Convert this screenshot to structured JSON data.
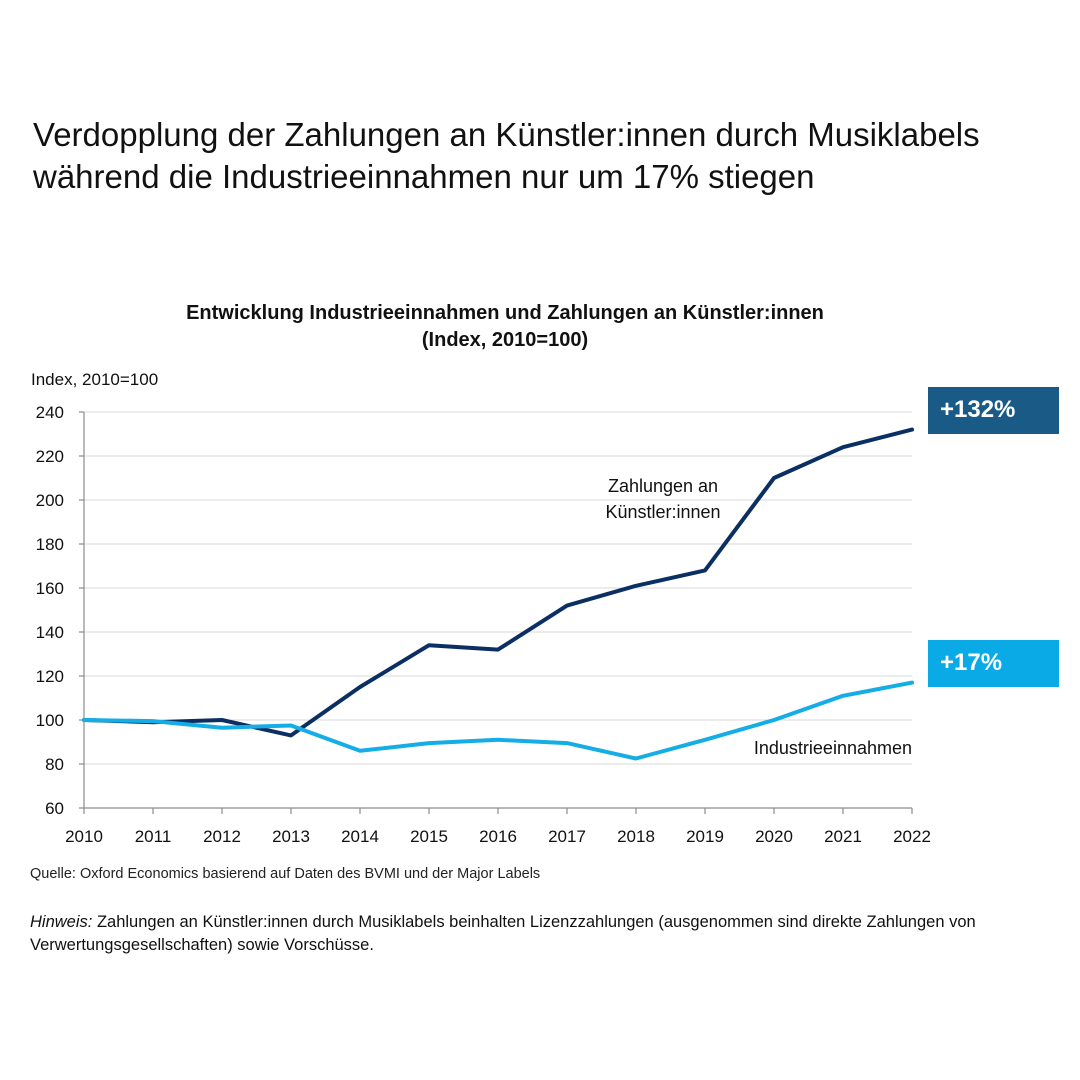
{
  "headline": [
    "Verdopplung der Zahlungen an Künstler:innen durch Musiklabels",
    "während die Industrieeinnahmen nur um 17% stiegen"
  ],
  "colors": {
    "artist_payments": "#0b2f63",
    "industry_revenue": "#14ade6",
    "badge_artist": "#1a5a86",
    "badge_industry": "#0aaae6",
    "grid": "#d9d9d9",
    "axis": "#8c8c8c"
  },
  "chart_data": {
    "type": "line",
    "title": [
      "Entwicklung Industrieeinnahmen und Zahlungen an Künstler:innen",
      "(Index, 2010=100)"
    ],
    "ylabel": "Index, 2010=100",
    "xlabel": "",
    "x": [
      "2010",
      "2011",
      "2012",
      "2013",
      "2014",
      "2015",
      "2016",
      "2017",
      "2018",
      "2019",
      "2020",
      "2021",
      "2022"
    ],
    "ylim": [
      60,
      240
    ],
    "yticks": [
      "60",
      "80",
      "100",
      "120",
      "140",
      "160",
      "180",
      "200",
      "220",
      "240"
    ],
    "grid": true,
    "series": [
      {
        "name": [
          "Zahlungen an",
          "Künstler:innen"
        ],
        "values": [
          100,
          99,
          100,
          93,
          115,
          134,
          132,
          152,
          161,
          168,
          210,
          224,
          232
        ],
        "end_badge": "+132%"
      },
      {
        "name": [
          "Industrieeinnahmen"
        ],
        "values": [
          100,
          99.5,
          96.5,
          97.5,
          86,
          89.5,
          91,
          89.5,
          82.5,
          91,
          100,
          111,
          117
        ],
        "end_badge": "+17%"
      }
    ]
  },
  "source": "Quelle: Oxford Economics basierend auf Daten des BVMI und der Major Labels",
  "note": {
    "label": "Hinweis:",
    "text": " Zahlungen an Künstler:innen durch Musiklabels beinhalten Lizenzzahlungen (ausgenommen sind direkte Zahlungen von Verwertungsgesellschaften) sowie Vorschüsse."
  }
}
